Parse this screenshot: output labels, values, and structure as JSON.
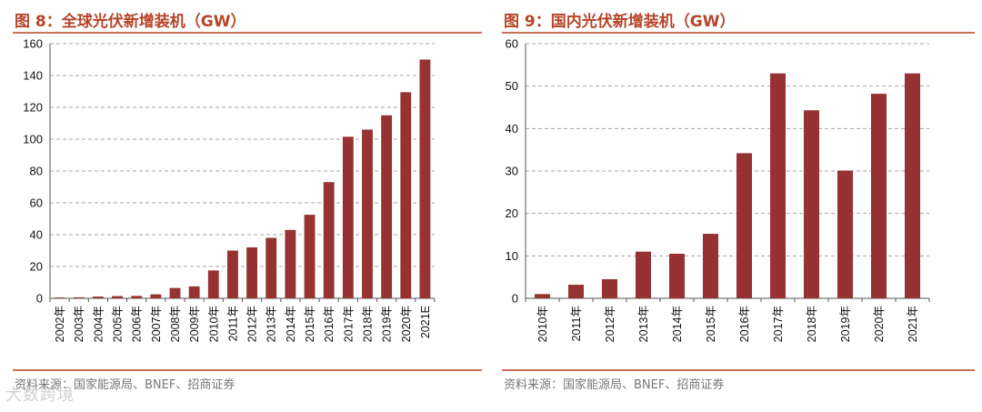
{
  "panels": {
    "left": {
      "title": "图 8：全球光伏新增装机（GW）",
      "source": "资料来源：国家能源局、BNEF、招商证券"
    },
    "right": {
      "title": "图 9：国内光伏新增装机（GW）",
      "source": "资料来源：国家能源局、BNEF、招商证券"
    }
  },
  "watermark": "大数跨境",
  "colors": {
    "bar": "#963232",
    "accent": "#b5452a",
    "rule": "#c9735a",
    "grid": "#a6a6a6"
  },
  "chart_data": [
    {
      "type": "bar",
      "title": "图 8：全球光伏新增装机（GW）",
      "categories": [
        "2002年",
        "2003年",
        "2004年",
        "2005年",
        "2006年",
        "2007年",
        "2008年",
        "2009年",
        "2010年",
        "2011年",
        "2012年",
        "2013年",
        "2014年",
        "2015年",
        "2016年",
        "2017年",
        "2018年",
        "2019年",
        "2020年",
        "2021E"
      ],
      "values": [
        0.5,
        0.6,
        1.1,
        1.4,
        1.5,
        2.5,
        6.5,
        7.5,
        17.5,
        30,
        32,
        38,
        43,
        52.5,
        73,
        101.5,
        106,
        115,
        129.5,
        150
      ],
      "ylim": [
        0,
        160
      ],
      "yticks": [
        0,
        20,
        40,
        60,
        80,
        100,
        120,
        140,
        160
      ],
      "grid": true,
      "xlabel": "",
      "ylabel": ""
    },
    {
      "type": "bar",
      "title": "图 9：国内光伏新增装机（GW）",
      "categories": [
        "2010年",
        "2011年",
        "2012年",
        "2013年",
        "2014年",
        "2015年",
        "2016年",
        "2017年",
        "2018年",
        "2019年",
        "2020年",
        "2021年"
      ],
      "values": [
        1,
        3.2,
        4.5,
        11,
        10.5,
        15.2,
        34.2,
        53,
        44.3,
        30.1,
        48.2,
        53
      ],
      "ylim": [
        0,
        60
      ],
      "yticks": [
        0,
        10,
        20,
        30,
        40,
        50,
        60
      ],
      "grid": true,
      "xlabel": "",
      "ylabel": ""
    }
  ]
}
